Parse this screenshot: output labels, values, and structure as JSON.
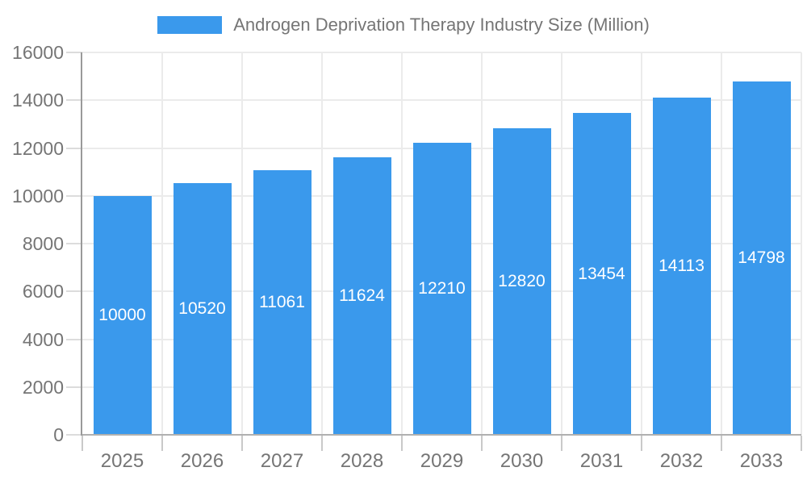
{
  "legend": {
    "label": "Androgen Deprivation Therapy Industry Size (Million)"
  },
  "chart_data": {
    "type": "bar",
    "title": "Androgen Deprivation Therapy Industry Size (Million)",
    "categories": [
      "2025",
      "2026",
      "2027",
      "2028",
      "2029",
      "2030",
      "2031",
      "2032",
      "2033"
    ],
    "values": [
      10000,
      10520,
      11061,
      11624,
      12210,
      12820,
      13454,
      14113,
      14798
    ],
    "series": [
      {
        "name": "Androgen Deprivation Therapy Industry Size (Million)",
        "values": [
          10000,
          10520,
          11061,
          11624,
          12210,
          12820,
          13454,
          14113,
          14798
        ]
      }
    ],
    "xlabel": "",
    "ylabel": "",
    "ylim": [
      0,
      16000
    ],
    "yticks": [
      0,
      2000,
      4000,
      6000,
      8000,
      10000,
      12000,
      14000,
      16000
    ],
    "grid": true,
    "legend_position": "top-center",
    "value_label_position": "inside-center",
    "colors": {
      "bar": "#3a99ec",
      "axis_text": "#757575",
      "gridline": "#ebebeb",
      "value_label": "#ffffff"
    }
  }
}
